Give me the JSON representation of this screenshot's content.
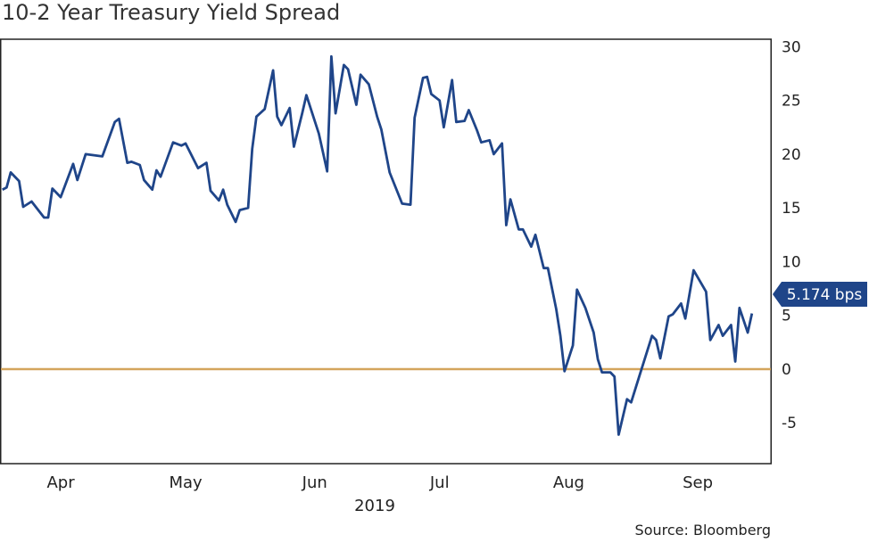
{
  "chart_data": {
    "type": "line",
    "title": "10-2 Year Treasury Yield Spread",
    "xlabel": "2019",
    "ylabel": "",
    "source": "Source: Bloomberg",
    "y_axis_position": "right",
    "ylim": [
      -8.8,
      30.7
    ],
    "xlim": [
      "2019-04-01",
      "2019-09-30"
    ],
    "y_ticks": [
      30,
      25,
      20,
      15,
      10,
      5,
      0,
      -5
    ],
    "y_tick_labels": [
      "30",
      "25",
      "20",
      "15",
      "10",
      "5",
      "0",
      "-5"
    ],
    "x_tick_labels": [
      "Apr",
      "May",
      "Jun",
      "Jul",
      "Aug",
      "Sep"
    ],
    "x_ticks": [
      "2019-04-15",
      "2019-05-15",
      "2019-06-15",
      "2019-07-15",
      "2019-08-15",
      "2019-09-15"
    ],
    "grid": false,
    "reference_line": {
      "value": 0,
      "color": "#d4a55c"
    },
    "last_value_label": "5.174 bps",
    "colors": {
      "line": "#1f4589",
      "label_bg": "#1f4589",
      "frame": "#222222",
      "text": "#333333"
    },
    "series": [
      {
        "points": [
          [
            "2019-04-01",
            16.7
          ],
          [
            "2019-04-02",
            16.9
          ],
          [
            "2019-04-03",
            18.3
          ],
          [
            "2019-04-05",
            17.5
          ],
          [
            "2019-04-06",
            15.1
          ],
          [
            "2019-04-08",
            15.6
          ],
          [
            "2019-04-11",
            14.1
          ],
          [
            "2019-04-12",
            14.1
          ],
          [
            "2019-04-13",
            16.8
          ],
          [
            "2019-04-15",
            16.0
          ],
          [
            "2019-04-18",
            19.1
          ],
          [
            "2019-04-19",
            17.6
          ],
          [
            "2019-04-21",
            20.0
          ],
          [
            "2019-04-25",
            19.8
          ],
          [
            "2019-04-28",
            23.0
          ],
          [
            "2019-04-29",
            23.3
          ],
          [
            "2019-05-01",
            19.2
          ],
          [
            "2019-05-02",
            19.3
          ],
          [
            "2019-05-04",
            19.0
          ],
          [
            "2019-05-05",
            17.6
          ],
          [
            "2019-05-07",
            16.7
          ],
          [
            "2019-05-08",
            18.5
          ],
          [
            "2019-05-09",
            17.9
          ],
          [
            "2019-05-12",
            21.1
          ],
          [
            "2019-05-14",
            20.8
          ],
          [
            "2019-05-15",
            21.0
          ],
          [
            "2019-05-18",
            18.7
          ],
          [
            "2019-05-20",
            19.2
          ],
          [
            "2019-05-21",
            16.6
          ],
          [
            "2019-05-23",
            15.7
          ],
          [
            "2019-05-24",
            16.7
          ],
          [
            "2019-05-25",
            15.3
          ],
          [
            "2019-05-27",
            13.7
          ],
          [
            "2019-05-28",
            14.8
          ],
          [
            "2019-05-30",
            15.0
          ],
          [
            "2019-05-31",
            20.5
          ],
          [
            "2019-06-01",
            23.5
          ],
          [
            "2019-06-03",
            24.2
          ],
          [
            "2019-06-05",
            27.8
          ],
          [
            "2019-06-06",
            23.5
          ],
          [
            "2019-06-07",
            22.7
          ],
          [
            "2019-06-09",
            24.3
          ],
          [
            "2019-06-10",
            20.7
          ],
          [
            "2019-06-12",
            23.8
          ],
          [
            "2019-06-13",
            25.5
          ],
          [
            "2019-06-16",
            21.9
          ],
          [
            "2019-06-18",
            18.4
          ],
          [
            "2019-06-19",
            29.1
          ],
          [
            "2019-06-20",
            23.8
          ],
          [
            "2019-06-22",
            28.3
          ],
          [
            "2019-06-23",
            27.9
          ],
          [
            "2019-06-25",
            24.6
          ],
          [
            "2019-06-26",
            27.4
          ],
          [
            "2019-06-28",
            26.5
          ],
          [
            "2019-06-30",
            23.5
          ],
          [
            "2019-07-01",
            22.3
          ],
          [
            "2019-07-03",
            18.3
          ],
          [
            "2019-07-06",
            15.4
          ],
          [
            "2019-07-08",
            15.3
          ],
          [
            "2019-07-09",
            23.4
          ],
          [
            "2019-07-11",
            27.1
          ],
          [
            "2019-07-12",
            27.2
          ],
          [
            "2019-07-13",
            25.6
          ],
          [
            "2019-07-15",
            25.0
          ],
          [
            "2019-07-16",
            22.5
          ],
          [
            "2019-07-18",
            26.9
          ],
          [
            "2019-07-19",
            23.0
          ],
          [
            "2019-07-21",
            23.1
          ],
          [
            "2019-07-22",
            24.1
          ],
          [
            "2019-07-24",
            22.2
          ],
          [
            "2019-07-25",
            21.1
          ],
          [
            "2019-07-27",
            21.3
          ],
          [
            "2019-07-28",
            20.0
          ],
          [
            "2019-07-30",
            21.0
          ],
          [
            "2019-07-31",
            13.4
          ],
          [
            "2019-08-01",
            15.8
          ],
          [
            "2019-08-03",
            13.0
          ],
          [
            "2019-08-04",
            13.0
          ],
          [
            "2019-08-06",
            11.4
          ],
          [
            "2019-08-07",
            12.5
          ],
          [
            "2019-08-09",
            9.4
          ],
          [
            "2019-08-10",
            9.4
          ],
          [
            "2019-08-12",
            5.6
          ],
          [
            "2019-08-13",
            3.1
          ],
          [
            "2019-08-14",
            -0.2
          ],
          [
            "2019-08-16",
            2.2
          ],
          [
            "2019-08-17",
            7.4
          ],
          [
            "2019-08-19",
            5.7
          ],
          [
            "2019-08-21",
            3.4
          ],
          [
            "2019-08-22",
            0.9
          ],
          [
            "2019-08-23",
            -0.3
          ],
          [
            "2019-08-25",
            -0.3
          ],
          [
            "2019-08-26",
            -0.7
          ],
          [
            "2019-08-27",
            -6.1
          ],
          [
            "2019-08-29",
            -2.8
          ],
          [
            "2019-08-30",
            -3.1
          ],
          [
            "2019-09-01",
            -0.6
          ],
          [
            "2019-09-04",
            3.1
          ],
          [
            "2019-09-05",
            2.7
          ],
          [
            "2019-09-06",
            1.0
          ],
          [
            "2019-09-08",
            4.9
          ],
          [
            "2019-09-09",
            5.1
          ],
          [
            "2019-09-11",
            6.1
          ],
          [
            "2019-09-12",
            4.7
          ],
          [
            "2019-09-14",
            9.2
          ],
          [
            "2019-09-17",
            7.2
          ],
          [
            "2019-09-18",
            2.7
          ],
          [
            "2019-09-20",
            4.1
          ],
          [
            "2019-09-21",
            3.1
          ],
          [
            "2019-09-23",
            4.1
          ],
          [
            "2019-09-24",
            0.7
          ],
          [
            "2019-09-25",
            5.7
          ],
          [
            "2019-09-27",
            3.4
          ],
          [
            "2019-09-28",
            5.174
          ]
        ]
      }
    ]
  }
}
